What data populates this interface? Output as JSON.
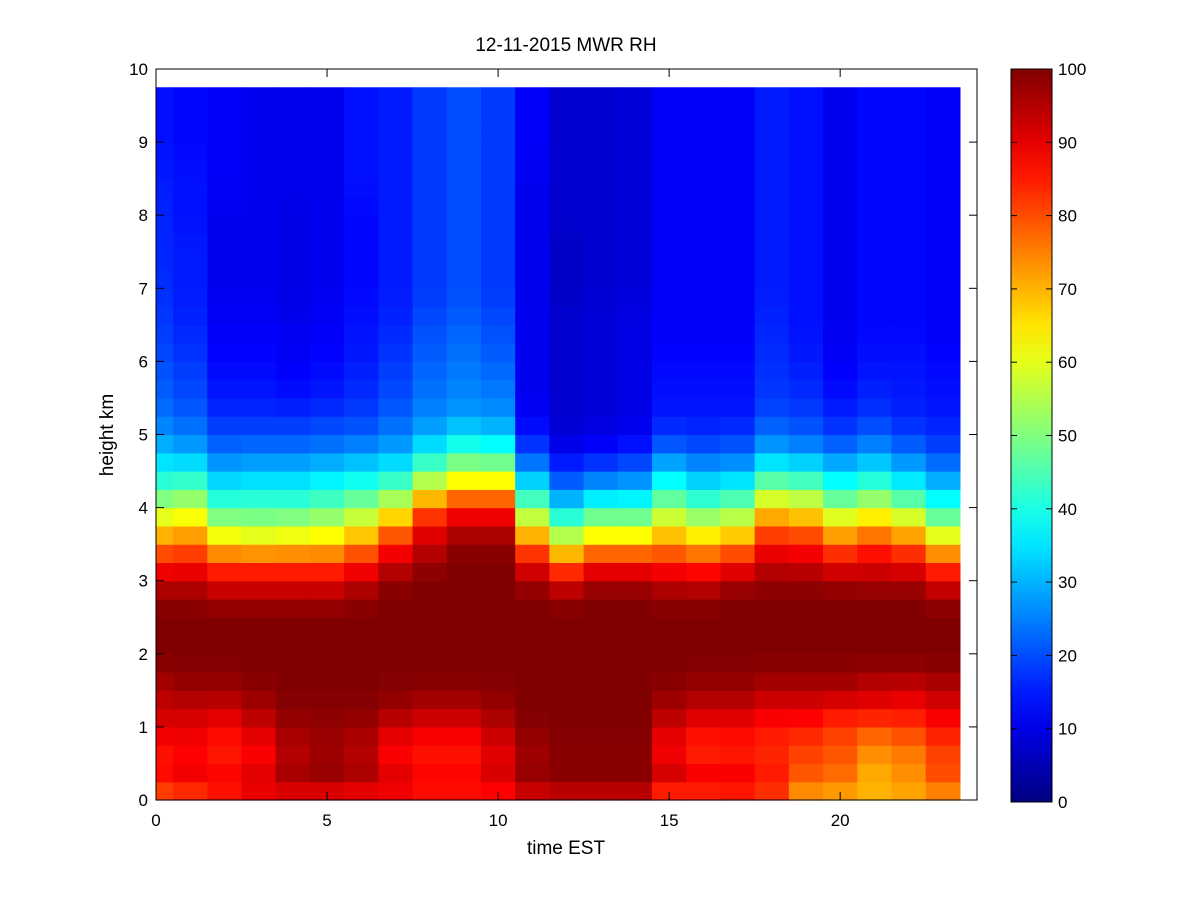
{
  "chart_data": {
    "type": "heatmap",
    "title": "12-11-2015 MWR RH",
    "xlabel": "time EST",
    "ylabel": "height km",
    "xlim": [
      0,
      24
    ],
    "ylim": [
      0,
      10
    ],
    "xticks": [
      0,
      5,
      10,
      15,
      20
    ],
    "yticks": [
      0,
      1,
      2,
      3,
      4,
      5,
      6,
      7,
      8,
      9,
      10
    ],
    "colormap": "jet",
    "colorbar": {
      "clim": [
        0,
        100
      ],
      "ticks": [
        0,
        10,
        20,
        30,
        40,
        50,
        60,
        70,
        80,
        90,
        100
      ]
    },
    "time_hours": [
      0,
      1,
      2,
      3,
      4,
      5,
      6,
      7,
      8,
      9,
      10,
      11,
      12,
      13,
      14,
      15,
      16,
      17,
      18,
      19,
      20,
      21,
      22,
      23
    ],
    "height_km_top": 9.75,
    "profile_heights_km": [
      0,
      0.1,
      0.25,
      0.5,
      0.75,
      1.0,
      1.25,
      1.5,
      1.75,
      2.0,
      2.25,
      2.5,
      2.75,
      3.0,
      3.25,
      3.5,
      3.75,
      4.0,
      4.25,
      4.5,
      4.75,
      5.0,
      5.25,
      5.5,
      6.0,
      6.5,
      7.0,
      7.5,
      8.0,
      8.5,
      9.0,
      9.5
    ],
    "rh_percent_by_hour": [
      [
        78,
        85,
        88,
        85,
        87,
        90,
        93,
        95,
        98,
        100,
        100,
        100,
        98,
        93,
        85,
        75,
        65,
        55,
        45,
        38,
        32,
        27,
        24,
        22,
        20,
        18,
        17,
        16,
        16,
        15,
        14,
        14
      ],
      [
        80,
        87,
        90,
        87,
        88,
        90,
        93,
        97,
        99,
        100,
        100,
        100,
        98,
        93,
        86,
        77,
        67,
        57,
        47,
        38,
        30,
        25,
        22,
        20,
        18,
        16,
        15,
        15,
        14,
        14,
        13,
        13
      ],
      [
        82,
        90,
        88,
        86,
        85,
        88,
        92,
        97,
        99,
        100,
        100,
        100,
        96,
        90,
        80,
        68,
        55,
        45,
        37,
        30,
        24,
        20,
        17,
        15,
        13,
        12,
        11,
        11,
        11,
        12,
        12,
        12
      ],
      [
        84,
        95,
        92,
        88,
        88,
        92,
        96,
        98,
        100,
        100,
        100,
        100,
        96,
        90,
        80,
        66,
        54,
        45,
        38,
        31,
        25,
        20,
        17,
        15,
        13,
        12,
        11,
        11,
        11,
        11,
        11,
        11
      ],
      [
        84,
        98,
        97,
        95,
        95,
        97,
        99,
        100,
        100,
        100,
        100,
        100,
        96,
        90,
        80,
        67,
        55,
        45,
        38,
        31,
        25,
        20,
        17,
        14,
        12,
        11,
        10,
        10,
        10,
        11,
        11,
        11
      ],
      [
        84,
        98,
        98,
        97,
        97,
        98,
        99,
        100,
        100,
        100,
        100,
        100,
        96,
        90,
        80,
        68,
        57,
        47,
        40,
        33,
        26,
        21,
        18,
        15,
        13,
        12,
        11,
        11,
        11,
        11,
        11,
        11
      ],
      [
        84,
        96,
        96,
        95,
        95,
        97,
        99,
        100,
        100,
        100,
        100,
        100,
        98,
        93,
        85,
        74,
        62,
        52,
        43,
        35,
        28,
        22,
        19,
        17,
        15,
        14,
        13,
        13,
        13,
        14,
        14,
        14
      ],
      [
        84,
        94,
        92,
        88,
        88,
        92,
        97,
        99,
        100,
        100,
        100,
        100,
        100,
        98,
        92,
        85,
        73,
        60,
        48,
        38,
        30,
        25,
        22,
        20,
        18,
        16,
        15,
        15,
        15,
        15,
        15,
        15
      ],
      [
        83,
        90,
        88,
        86,
        86,
        90,
        95,
        98,
        100,
        100,
        100,
        100,
        100,
        100,
        97,
        93,
        88,
        77,
        62,
        48,
        38,
        30,
        26,
        24,
        22,
        20,
        18,
        18,
        18,
        18,
        18,
        18
      ],
      [
        83,
        90,
        88,
        86,
        86,
        90,
        95,
        98,
        100,
        100,
        100,
        100,
        100,
        100,
        100,
        98,
        93,
        85,
        70,
        55,
        44,
        35,
        28,
        26,
        24,
        22,
        20,
        20,
        20,
        20,
        20,
        20
      ],
      [
        83,
        92,
        92,
        90,
        91,
        94,
        97,
        99,
        100,
        100,
        100,
        100,
        100,
        100,
        100,
        98,
        93,
        85,
        70,
        55,
        42,
        33,
        27,
        25,
        22,
        20,
        18,
        18,
        18,
        18,
        18,
        18
      ],
      [
        88,
        98,
        98,
        97,
        97,
        99,
        100,
        100,
        100,
        100,
        100,
        100,
        100,
        96,
        88,
        77,
        63,
        50,
        38,
        28,
        20,
        15,
        12,
        11,
        11,
        11,
        11,
        11,
        11,
        11,
        12,
        12
      ],
      [
        90,
        99,
        99,
        99,
        99,
        100,
        100,
        100,
        100,
        100,
        100,
        100,
        98,
        90,
        77,
        62,
        48,
        35,
        25,
        18,
        12,
        9,
        8,
        8,
        8,
        8,
        7,
        7,
        8,
        8,
        8,
        8
      ],
      [
        90,
        99,
        99,
        99,
        99,
        100,
        100,
        100,
        100,
        100,
        100,
        100,
        100,
        95,
        85,
        70,
        55,
        42,
        30,
        21,
        14,
        10,
        9,
        9,
        9,
        9,
        8,
        8,
        8,
        8,
        8,
        8
      ],
      [
        90,
        99,
        99,
        99,
        99,
        100,
        100,
        100,
        100,
        100,
        100,
        100,
        100,
        95,
        85,
        70,
        55,
        42,
        31,
        23,
        16,
        12,
        10,
        10,
        10,
        10,
        9,
        9,
        9,
        9,
        9,
        9
      ],
      [
        76,
        94,
        93,
        90,
        88,
        92,
        96,
        98,
        100,
        100,
        100,
        100,
        98,
        93,
        84,
        74,
        63,
        52,
        42,
        33,
        24,
        18,
        15,
        14,
        13,
        12,
        12,
        12,
        12,
        12,
        12,
        12
      ],
      [
        76,
        94,
        90,
        86,
        84,
        88,
        93,
        97,
        99,
        100,
        100,
        100,
        98,
        92,
        82,
        70,
        58,
        47,
        37,
        29,
        22,
        17,
        15,
        14,
        13,
        12,
        12,
        12,
        12,
        12,
        12,
        12
      ],
      [
        76,
        95,
        90,
        86,
        85,
        88,
        93,
        97,
        99,
        100,
        100,
        100,
        100,
        95,
        86,
        74,
        61,
        50,
        40,
        30,
        23,
        18,
        15,
        14,
        13,
        12,
        12,
        12,
        12,
        12,
        12,
        12
      ],
      [
        76,
        90,
        86,
        84,
        84,
        86,
        90,
        95,
        98,
        100,
        100,
        100,
        100,
        97,
        93,
        86,
        77,
        65,
        52,
        40,
        30,
        24,
        20,
        18,
        17,
        16,
        15,
        15,
        15,
        15,
        15,
        15
      ],
      [
        70,
        78,
        78,
        80,
        82,
        85,
        90,
        95,
        98,
        100,
        100,
        100,
        100,
        97,
        92,
        85,
        75,
        62,
        50,
        38,
        28,
        22,
        19,
        17,
        15,
        14,
        14,
        14,
        14,
        14,
        14,
        14
      ],
      [
        70,
        75,
        76,
        78,
        80,
        82,
        88,
        95,
        98,
        100,
        100,
        100,
        100,
        96,
        88,
        78,
        66,
        53,
        42,
        33,
        25,
        19,
        16,
        14,
        12,
        11,
        11,
        11,
        11,
        11,
        11,
        11
      ],
      [
        68,
        72,
        70,
        72,
        75,
        80,
        88,
        93,
        97,
        100,
        100,
        100,
        100,
        95,
        90,
        82,
        70,
        58,
        46,
        36,
        28,
        22,
        18,
        16,
        14,
        13,
        13,
        13,
        13,
        13,
        13,
        13
      ],
      [
        68,
        75,
        73,
        74,
        77,
        82,
        87,
        92,
        97,
        100,
        100,
        100,
        100,
        95,
        88,
        78,
        65,
        52,
        40,
        31,
        24,
        19,
        16,
        15,
        14,
        13,
        13,
        13,
        13,
        13,
        13,
        13
      ],
      [
        70,
        80,
        80,
        80,
        82,
        86,
        90,
        94,
        98,
        100,
        100,
        100,
        97,
        90,
        80,
        67,
        53,
        42,
        33,
        26,
        20,
        17,
        15,
        14,
        13,
        12,
        12,
        12,
        12,
        12,
        12,
        12
      ]
    ]
  }
}
